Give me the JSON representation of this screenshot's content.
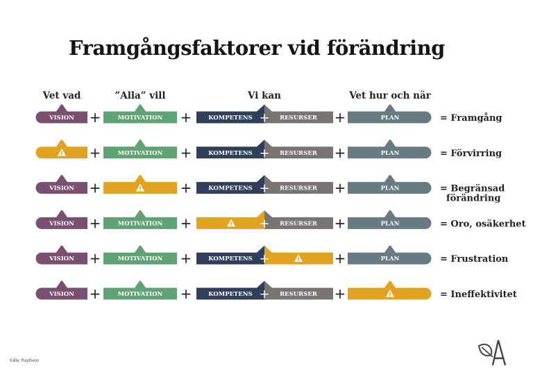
{
  "title": "Framgångsfaktorer vid förändring",
  "headers": [
    "Vet vad",
    "”Alla” vill",
    "Vi kan",
    "Vet hur och när"
  ],
  "labels": {
    "vision": "VISION",
    "motivation": "MOTIVATION",
    "kompetens": "KOMPETENS",
    "resurser": "RESURSER",
    "plan": "PLAN"
  },
  "colors": {
    "vision": "#7b4f70",
    "motivation": "#5fa274",
    "kompetens": "#2f3f5c",
    "resurser": "#797372",
    "plan": "#687a82",
    "missing": "#e2a420"
  },
  "operator": "+",
  "rows": [
    {
      "missing": "",
      "result": [
        "= Framgång"
      ]
    },
    {
      "missing": "vision",
      "result": [
        "= Förvirring"
      ]
    },
    {
      "missing": "motivation",
      "result": [
        "= Begränsad",
        "förändring"
      ]
    },
    {
      "missing": "kompetens",
      "result": [
        "= Oro, osäkerhet"
      ]
    },
    {
      "missing": "resurser",
      "result": [
        "= Frustration"
      ]
    },
    {
      "missing": "plan",
      "result": [
        "= Ineffektivitet"
      ]
    }
  ],
  "missing_icon": "warning-icon",
  "source": "Källa: Raytheon",
  "logo": "A"
}
